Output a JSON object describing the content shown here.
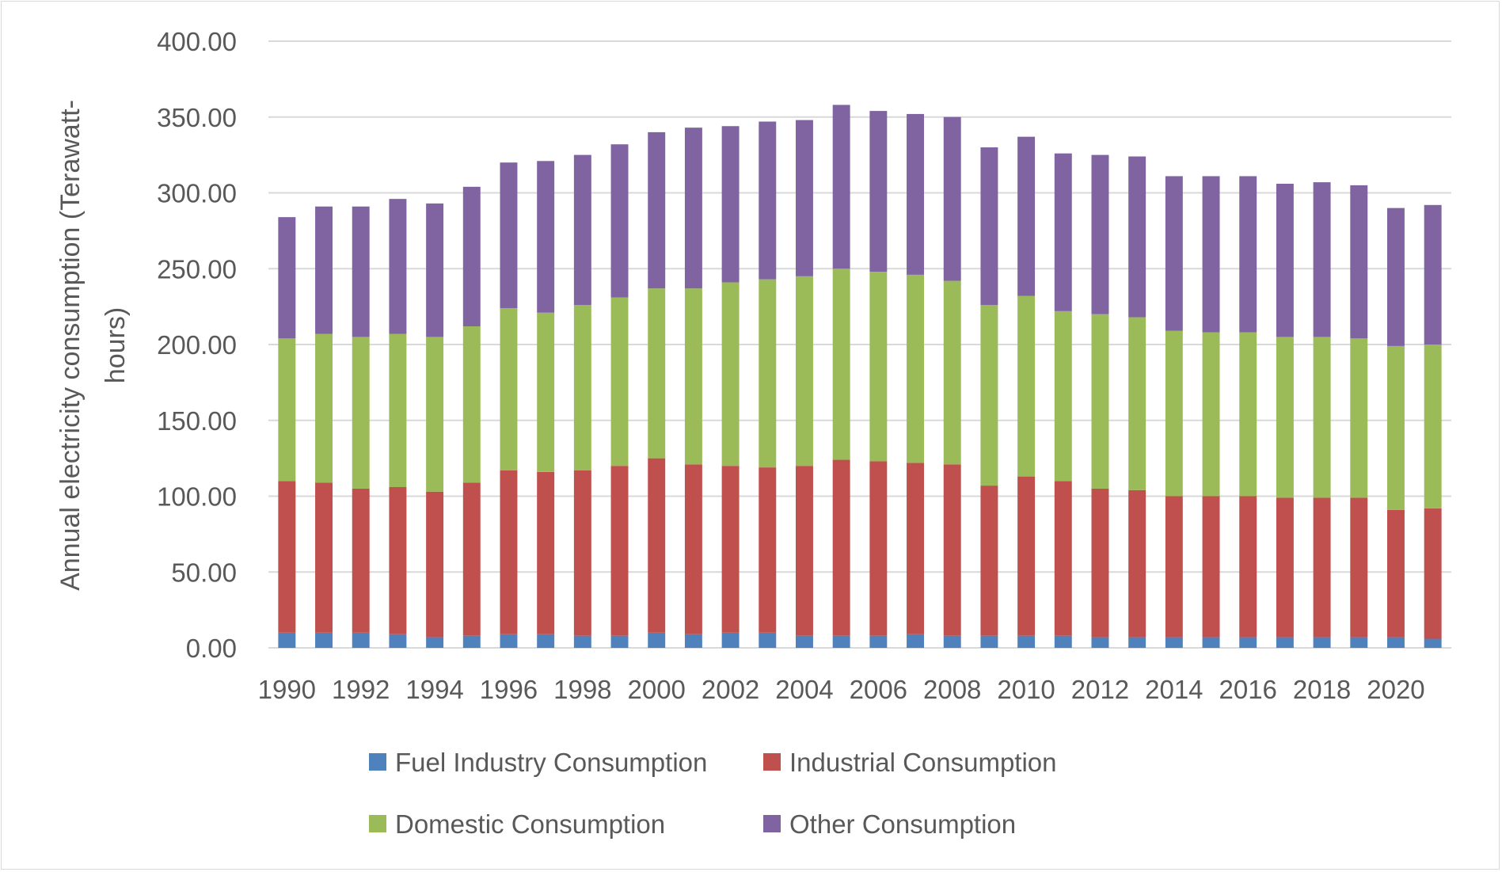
{
  "chart_data": {
    "type": "bar",
    "stacked": true,
    "title": "",
    "xlabel": "",
    "ylabel": "Annual electricity consumption (Terawatt-hours)",
    "ylabel_lines": [
      "Annual electricity consumption (Terawatt-",
      "hours)"
    ],
    "ylim": [
      0,
      400
    ],
    "yticks": [
      "0.00",
      "50.00",
      "100.00",
      "150.00",
      "200.00",
      "250.00",
      "300.00",
      "350.00",
      "400.00"
    ],
    "grid": true,
    "legend_placement": "bottom",
    "categories": [
      "1990",
      "1991",
      "1992",
      "1993",
      "1994",
      "1995",
      "1996",
      "1997",
      "1998",
      "1999",
      "2000",
      "2001",
      "2002",
      "2003",
      "2004",
      "2005",
      "2006",
      "2007",
      "2008",
      "2009",
      "2010",
      "2011",
      "2012",
      "2013",
      "2014",
      "2015",
      "2016",
      "2017",
      "2018",
      "2019",
      "2020",
      "2021"
    ],
    "xtick_labels": [
      "1990",
      "1992",
      "1994",
      "1996",
      "1998",
      "2000",
      "2002",
      "2004",
      "2006",
      "2008",
      "2010",
      "2012",
      "2014",
      "2016",
      "2018",
      "2020"
    ],
    "series": [
      {
        "name": "Fuel Industry Consumption",
        "color": "#4f81bd",
        "values": [
          10,
          10,
          10,
          9,
          7,
          8,
          9,
          9,
          8,
          8,
          10,
          9,
          10,
          10,
          8,
          8,
          8,
          9,
          8,
          8,
          8,
          8,
          7,
          7,
          7,
          7,
          7,
          7,
          7,
          7,
          7,
          6
        ]
      },
      {
        "name": "Industrial Consumption",
        "color": "#c0504d",
        "values": [
          100,
          99,
          95,
          97,
          96,
          101,
          108,
          107,
          109,
          112,
          115,
          112,
          110,
          109,
          112,
          116,
          115,
          113,
          113,
          99,
          105,
          102,
          98,
          97,
          93,
          93,
          93,
          92,
          92,
          92,
          84,
          86
        ]
      },
      {
        "name": "Domestic Consumption",
        "color": "#9bbb59",
        "values": [
          94,
          98,
          100,
          101,
          102,
          103,
          107,
          105,
          109,
          111,
          112,
          116,
          121,
          124,
          125,
          126,
          125,
          124,
          121,
          119,
          119,
          112,
          115,
          114,
          109,
          108,
          108,
          106,
          106,
          105,
          108,
          108
        ]
      },
      {
        "name": "Other Consumption",
        "color": "#8064a2",
        "values": [
          80,
          84,
          86,
          89,
          88,
          92,
          96,
          100,
          99,
          101,
          103,
          106,
          103,
          104,
          103,
          108,
          106,
          106,
          108,
          104,
          105,
          104,
          105,
          106,
          102,
          103,
          103,
          101,
          102,
          101,
          91,
          92
        ]
      }
    ]
  }
}
